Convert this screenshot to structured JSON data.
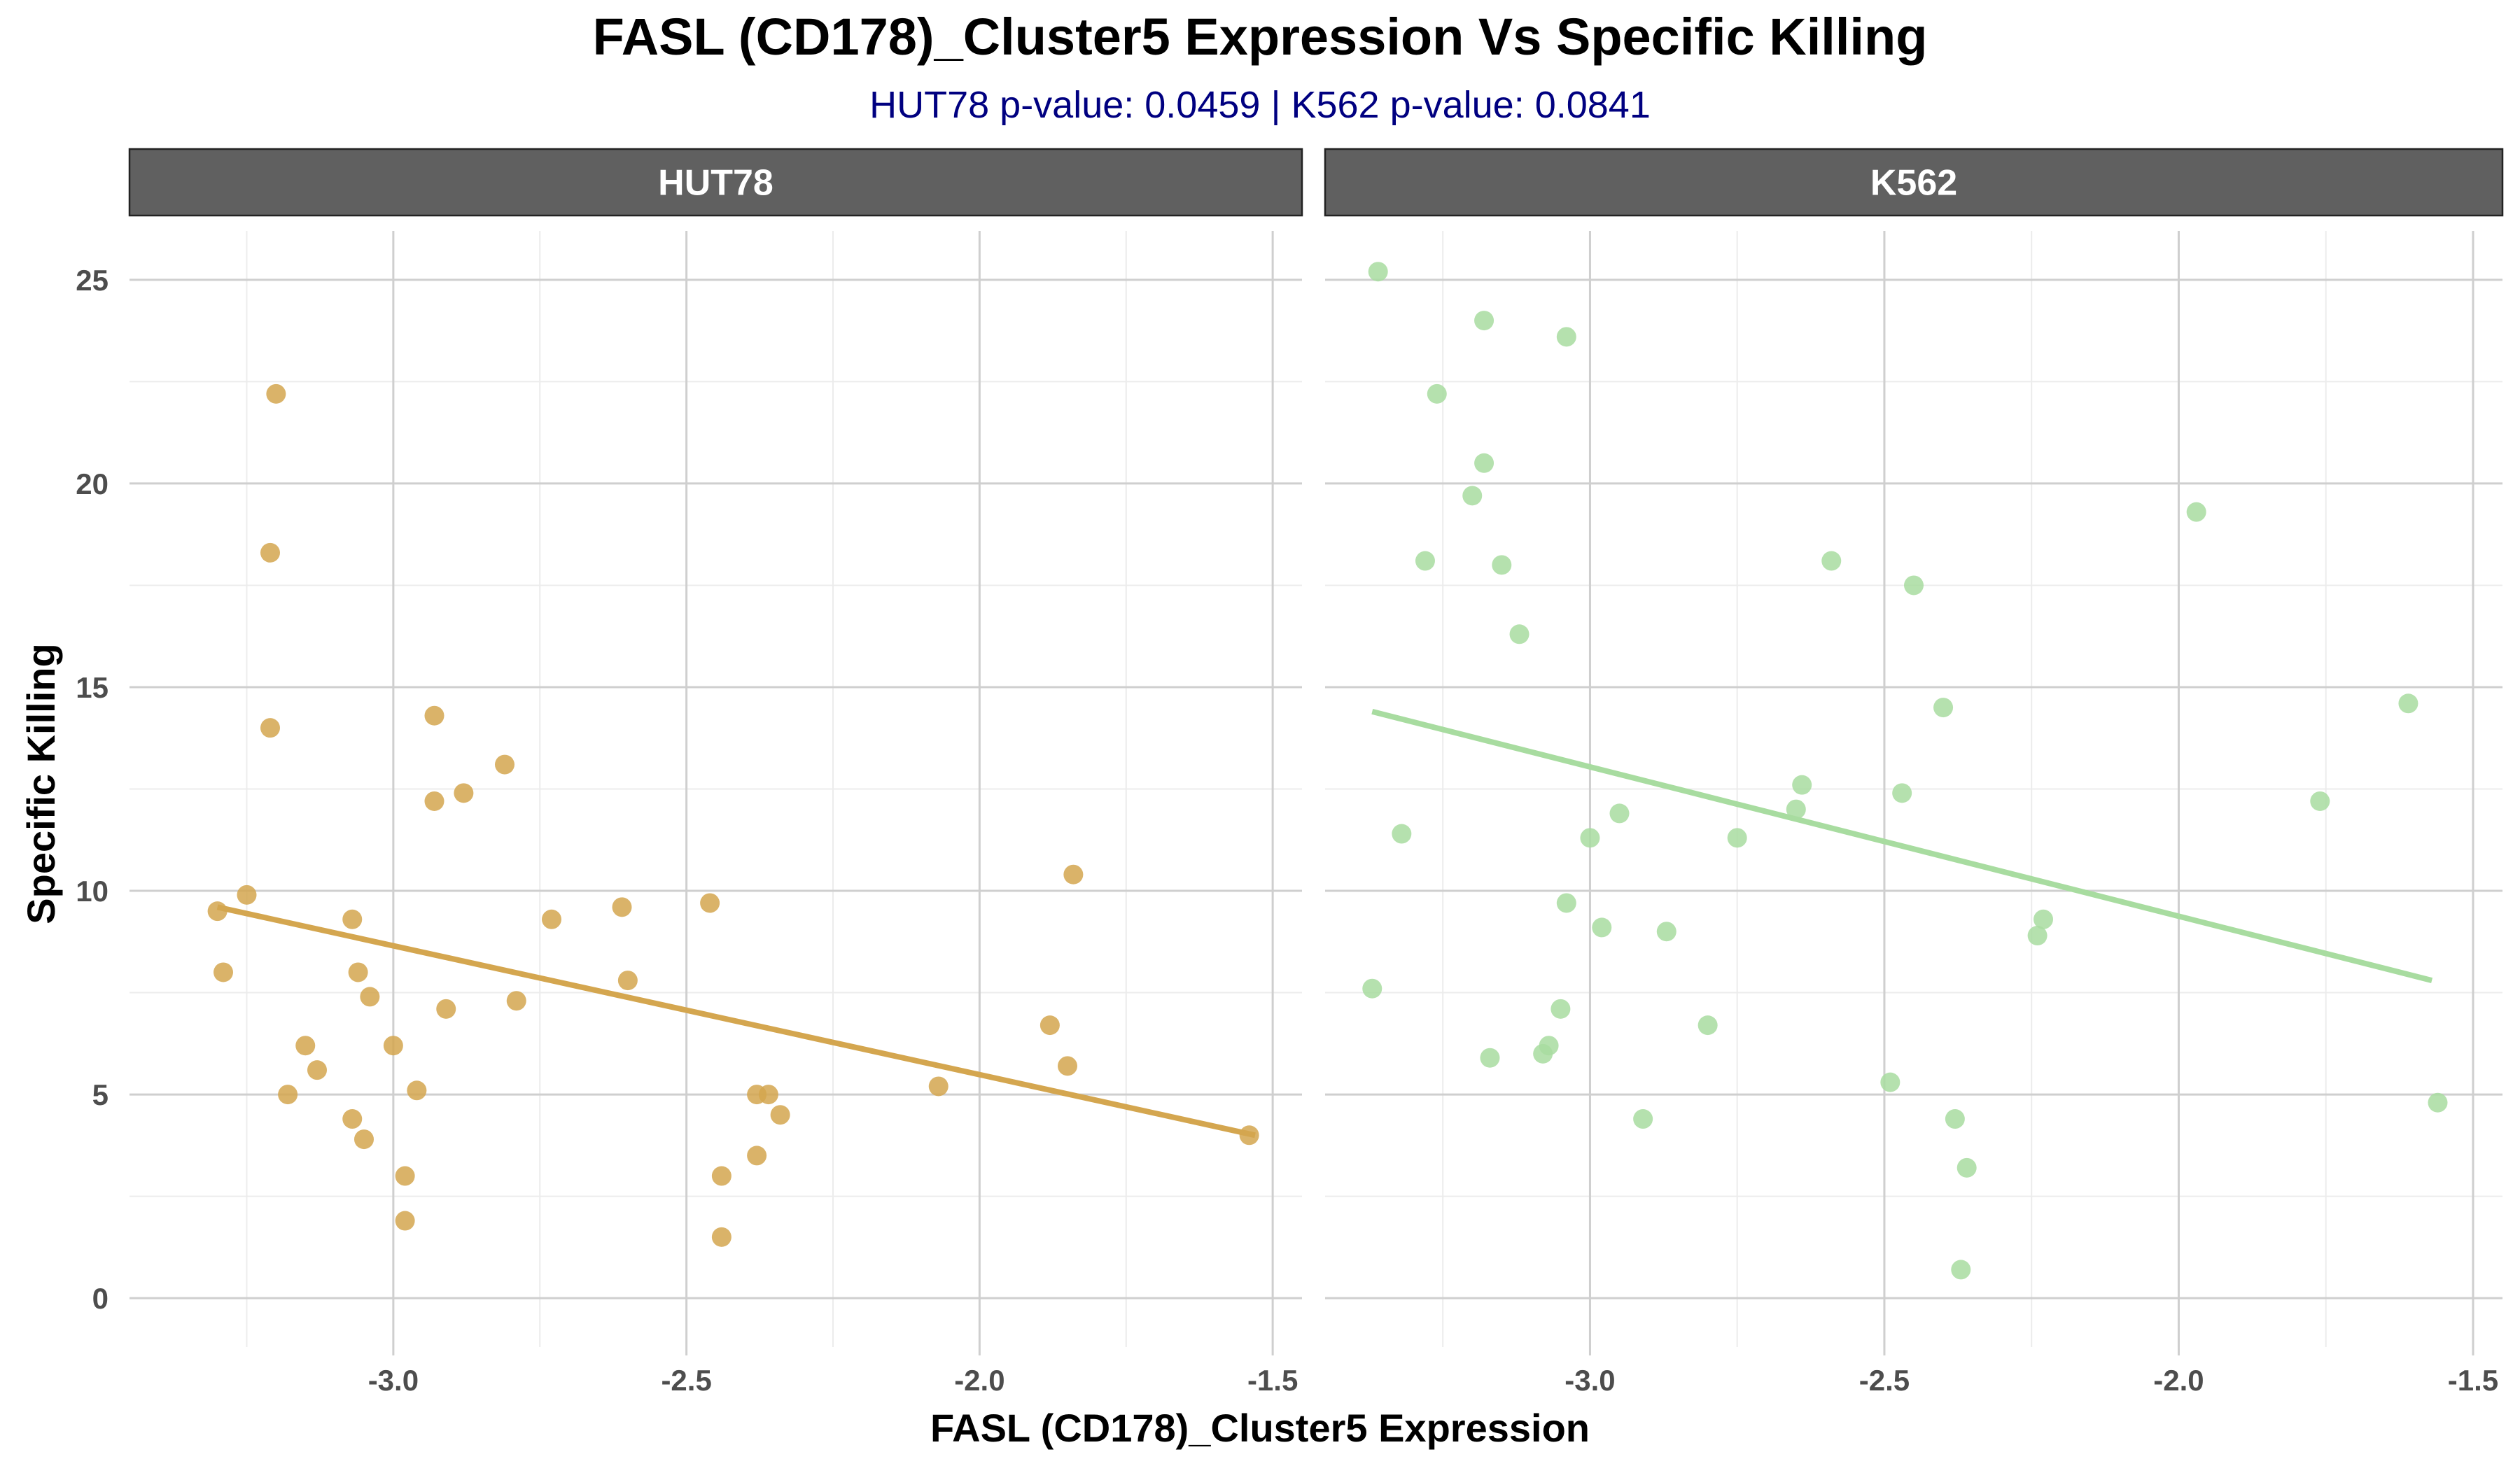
{
  "chart_data": {
    "type": "scatter",
    "title": "FASL (CD178)_Cluster5 Expression Vs Specific Killing",
    "subtitle": "HUT78 p-value: 0.0459  | K562 p-value: 0.0841",
    "xlabel": "FASL (CD178)_Cluster5 Expression",
    "ylabel": "Specific Killing",
    "xlim": [
      -3.45,
      -1.45
    ],
    "ylim": [
      -1.2,
      26.2
    ],
    "x_ticks": [
      -3.0,
      -2.5,
      -2.0,
      -1.5
    ],
    "x_tick_labels": [
      "-3.0",
      "-2.5",
      "-2.0",
      "-1.5"
    ],
    "y_ticks": [
      0,
      5,
      10,
      15,
      20,
      25
    ],
    "y_tick_labels": [
      "0",
      "5",
      "10",
      "15",
      "20",
      "25"
    ],
    "grid": true,
    "legend": "none",
    "facets": [
      {
        "label": "HUT78",
        "color": "#D4A64F",
        "trend": {
          "x": [
            -3.3,
            -1.53
          ],
          "y": [
            9.6,
            4.0
          ]
        },
        "points": [
          {
            "x": -3.3,
            "y": 9.5
          },
          {
            "x": -3.29,
            "y": 8.0
          },
          {
            "x": -3.25,
            "y": 9.9
          },
          {
            "x": -3.21,
            "y": 18.3
          },
          {
            "x": -3.21,
            "y": 14.0
          },
          {
            "x": -3.2,
            "y": 22.2
          },
          {
            "x": -3.18,
            "y": 5.0
          },
          {
            "x": -3.15,
            "y": 6.2
          },
          {
            "x": -3.13,
            "y": 5.6
          },
          {
            "x": -3.07,
            "y": 9.3
          },
          {
            "x": -3.07,
            "y": 4.4
          },
          {
            "x": -3.06,
            "y": 8.0
          },
          {
            "x": -3.05,
            "y": 3.9
          },
          {
            "x": -3.04,
            "y": 7.4
          },
          {
            "x": -3.0,
            "y": 6.2
          },
          {
            "x": -2.98,
            "y": 3.0
          },
          {
            "x": -2.98,
            "y": 1.9
          },
          {
            "x": -2.96,
            "y": 5.1
          },
          {
            "x": -2.93,
            "y": 14.3
          },
          {
            "x": -2.93,
            "y": 12.2
          },
          {
            "x": -2.91,
            "y": 7.1
          },
          {
            "x": -2.88,
            "y": 12.4
          },
          {
            "x": -2.81,
            "y": 13.1
          },
          {
            "x": -2.79,
            "y": 7.3
          },
          {
            "x": -2.73,
            "y": 9.3
          },
          {
            "x": -2.61,
            "y": 9.6
          },
          {
            "x": -2.6,
            "y": 7.8
          },
          {
            "x": -2.46,
            "y": 9.7
          },
          {
            "x": -2.44,
            "y": 3.0
          },
          {
            "x": -2.44,
            "y": 1.5
          },
          {
            "x": -2.38,
            "y": 5.0
          },
          {
            "x": -2.38,
            "y": 3.5
          },
          {
            "x": -2.36,
            "y": 5.0
          },
          {
            "x": -2.34,
            "y": 4.5
          },
          {
            "x": -2.07,
            "y": 5.2
          },
          {
            "x": -1.88,
            "y": 6.7
          },
          {
            "x": -1.85,
            "y": 5.7
          },
          {
            "x": -1.84,
            "y": 10.4
          },
          {
            "x": -1.54,
            "y": 4.0
          }
        ]
      },
      {
        "label": "K562",
        "color": "#A8DCA0",
        "trend": {
          "x": [
            -3.37,
            -1.57
          ],
          "y": [
            14.4,
            7.8
          ]
        },
        "points": [
          {
            "x": -3.37,
            "y": 7.6
          },
          {
            "x": -3.36,
            "y": 25.2
          },
          {
            "x": -3.32,
            "y": 11.4
          },
          {
            "x": -3.28,
            "y": 18.1
          },
          {
            "x": -3.26,
            "y": 22.2
          },
          {
            "x": -3.2,
            "y": 19.7
          },
          {
            "x": -3.18,
            "y": 24.0
          },
          {
            "x": -3.18,
            "y": 20.5
          },
          {
            "x": -3.17,
            "y": 5.9
          },
          {
            "x": -3.15,
            "y": 18.0
          },
          {
            "x": -3.12,
            "y": 16.3
          },
          {
            "x": -3.08,
            "y": 6.0
          },
          {
            "x": -3.07,
            "y": 6.2
          },
          {
            "x": -3.05,
            "y": 7.1
          },
          {
            "x": -3.04,
            "y": 23.6
          },
          {
            "x": -3.04,
            "y": 9.7
          },
          {
            "x": -3.0,
            "y": 11.3
          },
          {
            "x": -2.98,
            "y": 9.1
          },
          {
            "x": -2.95,
            "y": 11.9
          },
          {
            "x": -2.91,
            "y": 4.4
          },
          {
            "x": -2.87,
            "y": 9.0
          },
          {
            "x": -2.8,
            "y": 6.7
          },
          {
            "x": -2.75,
            "y": 11.3
          },
          {
            "x": -2.65,
            "y": 12.0
          },
          {
            "x": -2.64,
            "y": 12.6
          },
          {
            "x": -2.59,
            "y": 18.1
          },
          {
            "x": -2.49,
            "y": 5.3
          },
          {
            "x": -2.47,
            "y": 12.4
          },
          {
            "x": -2.45,
            "y": 17.5
          },
          {
            "x": -2.4,
            "y": 14.5
          },
          {
            "x": -2.38,
            "y": 4.4
          },
          {
            "x": -2.37,
            "y": 0.7
          },
          {
            "x": -2.36,
            "y": 3.2
          },
          {
            "x": -2.24,
            "y": 8.9
          },
          {
            "x": -2.23,
            "y": 9.3
          },
          {
            "x": -1.97,
            "y": 19.3
          },
          {
            "x": -1.76,
            "y": 12.2
          },
          {
            "x": -1.61,
            "y": 14.6
          },
          {
            "x": -1.56,
            "y": 4.8
          }
        ]
      }
    ]
  }
}
